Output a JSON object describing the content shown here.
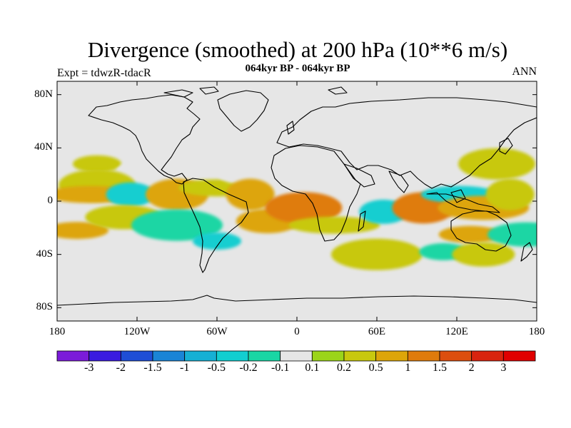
{
  "title": "Divergence (smoothed) at 200 hPa (10**6 m/s)",
  "subtitle": "064kyr BP - 064kyr BP",
  "experiment": "Expt = tdwzR-tdacR",
  "season": "ANN",
  "lat_ticks": [
    "80N",
    "40N",
    "0",
    "40S",
    "80S"
  ],
  "lat_values": [
    80,
    40,
    0,
    -40,
    -80
  ],
  "lon_ticks": [
    "180",
    "120W",
    "60W",
    "0",
    "60E",
    "120E",
    "180"
  ],
  "lon_values": [
    -180,
    -120,
    -60,
    0,
    60,
    120,
    180
  ],
  "colorbar": {
    "labels": [
      "-3",
      "-2",
      "-1.5",
      "-1",
      "-0.5",
      "-0.2",
      "-0.1",
      "0.1",
      "0.2",
      "0.5",
      "1",
      "1.5",
      "2",
      "3"
    ],
    "colors": [
      "#7b1bd9",
      "#3a1be0",
      "#1f4ed6",
      "#1a84d6",
      "#16b0d4",
      "#12ced0",
      "#1ad6a4",
      "#e6e6e6",
      "#9bd41a",
      "#c8c80e",
      "#dda50a",
      "#df7b0c",
      "#dc4e0e",
      "#d8240e",
      "#e00000"
    ]
  },
  "colors": {
    "background": "#e6e6e6",
    "coast": "#000000"
  },
  "chart_data": {
    "type": "heatmap",
    "projection": "cylindrical-equidistant",
    "title": "Divergence (smoothed) at 200 hPa (10**6 m/s)",
    "subtitle": "064kyr BP - 064kyr BP",
    "xlim": [
      -180,
      180
    ],
    "ylim": [
      -90,
      90
    ],
    "levels": [
      -3,
      -2,
      -1.5,
      -1,
      -0.5,
      -0.2,
      -0.1,
      0.1,
      0.2,
      0.5,
      1,
      1.5,
      2,
      3
    ],
    "regions": [
      {
        "lon": -150,
        "lat": 28,
        "value": 0.2
      },
      {
        "lon": -112,
        "lat": 22,
        "value": -0.1
      },
      {
        "lon": -150,
        "lat": 12,
        "value": 0.2
      },
      {
        "lon": -155,
        "lat": 5,
        "value": 0.5
      },
      {
        "lon": -125,
        "lat": 5,
        "value": -0.5
      },
      {
        "lon": -90,
        "lat": 5,
        "value": 0.5
      },
      {
        "lon": -60,
        "lat": 10,
        "value": 0.2
      },
      {
        "lon": -25,
        "lat": 20,
        "value": -0.1
      },
      {
        "lon": -35,
        "lat": 5,
        "value": 0.5
      },
      {
        "lon": -165,
        "lat": -22,
        "value": 0.5
      },
      {
        "lon": -130,
        "lat": -12,
        "value": 0.2
      },
      {
        "lon": -90,
        "lat": -18,
        "value": -0.2
      },
      {
        "lon": -60,
        "lat": -30,
        "value": -0.5
      },
      {
        "lon": -22,
        "lat": -15,
        "value": 0.5
      },
      {
        "lon": 5,
        "lat": -5,
        "value": 1
      },
      {
        "lon": 28,
        "lat": -18,
        "value": 0.2
      },
      {
        "lon": 65,
        "lat": -8,
        "value": -0.5
      },
      {
        "lon": 95,
        "lat": -5,
        "value": 1
      },
      {
        "lon": 122,
        "lat": 5,
        "value": -0.5
      },
      {
        "lon": 140,
        "lat": -5,
        "value": 0.5
      },
      {
        "lon": 160,
        "lat": 5,
        "value": 0.2
      },
      {
        "lon": 130,
        "lat": -25,
        "value": 0.5
      },
      {
        "lon": 172,
        "lat": -25,
        "value": -0.2
      },
      {
        "lon": 60,
        "lat": -40,
        "value": 0.2
      },
      {
        "lon": 110,
        "lat": -38,
        "value": -0.2
      },
      {
        "lon": 140,
        "lat": -40,
        "value": 0.2
      },
      {
        "lon": 150,
        "lat": 28,
        "value": 0.2
      }
    ]
  }
}
